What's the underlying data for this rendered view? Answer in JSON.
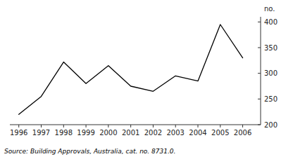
{
  "chart_data": {
    "type": "line",
    "x": [
      1996,
      1997,
      1998,
      1999,
      2000,
      2001,
      2002,
      2003,
      2004,
      2005,
      2006
    ],
    "values": [
      220,
      255,
      322,
      280,
      315,
      275,
      265,
      295,
      285,
      395,
      330
    ],
    "color": "#000000",
    "xlim": [
      1995.6,
      2006.8
    ],
    "xticks": [
      1996,
      1997,
      1998,
      1999,
      2000,
      2001,
      2002,
      2003,
      2004,
      2005,
      2006
    ],
    "ylim": [
      200,
      410
    ],
    "yticks": [
      200,
      250,
      300,
      350,
      400
    ],
    "y_label": "no.",
    "annotations": [
      "Source: Building Approvals, Australia, cat. no. 8731.0."
    ],
    "grid": false
  }
}
